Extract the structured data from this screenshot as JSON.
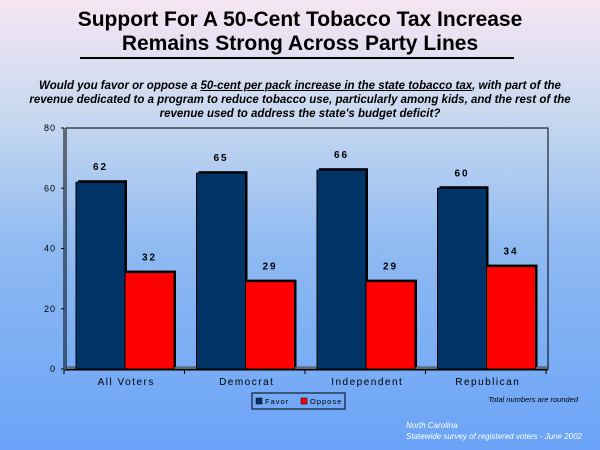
{
  "title_line1": "Support For A 50-Cent Tobacco Tax Increase",
  "title_line2": "Remains Strong Across Party Lines",
  "question": {
    "pre": "Would you favor or oppose a ",
    "underlined": "50-cent per pack increase in the state tobacco tax",
    "post": ", with part of the revenue dedicated to a program to reduce tobacco use, particularly among kids, and the rest of the revenue used to address the state's budget deficit?"
  },
  "note": "Total numbers are rounded",
  "footer_line1": "North Carolina",
  "footer_line2": "Statewide survey of registered voters - June 2002",
  "colors": {
    "favor": "#003366",
    "oppose": "#ff0000"
  },
  "chart_data": {
    "type": "bar",
    "categories": [
      "All Voters",
      "Democrat",
      "Independent",
      "Republican"
    ],
    "series": [
      {
        "name": "Favor",
        "values": [
          62,
          65,
          66,
          60
        ]
      },
      {
        "name": "Oppose",
        "values": [
          32,
          29,
          29,
          34
        ]
      }
    ],
    "ylim": [
      0,
      80
    ],
    "yticks": [
      "0",
      "20",
      "40",
      "60",
      "80"
    ],
    "legend": "bottom-center"
  }
}
